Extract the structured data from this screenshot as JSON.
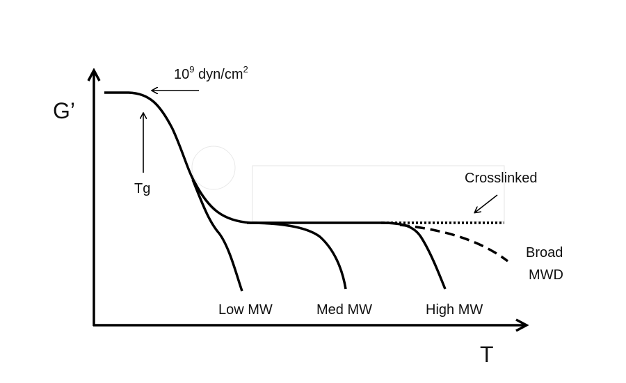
{
  "axes": {
    "y_label": "G’",
    "x_label": "T"
  },
  "annotations": {
    "modulus_prefix": "10",
    "modulus_exponent": "9",
    "modulus_unit": " dyn/cm",
    "modulus_unit_exponent": "2",
    "tg": "Tg",
    "crosslinked": "Crosslinked",
    "broad_line1": "Broad",
    "broad_line2": "MWD"
  },
  "curves": {
    "low": "Low MW",
    "med": "Med MW",
    "high": "High MW"
  },
  "colors": {
    "line": "#000000",
    "faint": "#e6e6e6"
  }
}
